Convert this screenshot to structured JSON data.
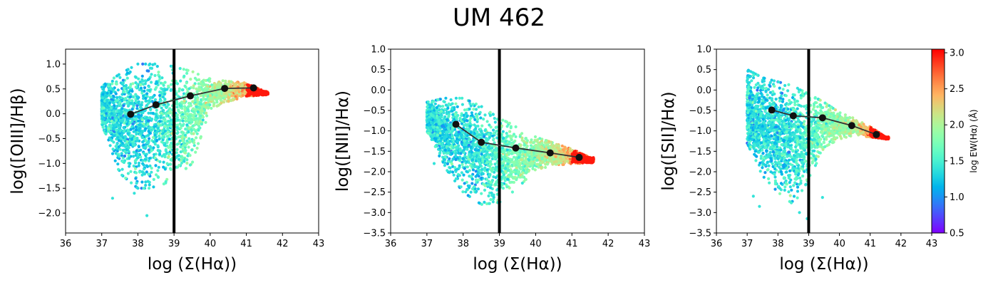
{
  "figure_title": "UM 462",
  "chart_data": [
    {
      "type": "scatter",
      "panel": "left",
      "xlabel": "log (Σ(Hα))",
      "ylabel": "log([OIII]/Hβ)",
      "xlim": [
        36,
        43
      ],
      "ylim": [
        -2.4,
        1.3
      ],
      "xticks": [
        36,
        37,
        38,
        39,
        40,
        41,
        42,
        43
      ],
      "yticks": [
        -2.0,
        -1.5,
        -1.0,
        -0.5,
        0.0,
        0.5,
        1.0
      ],
      "vline_x": 39,
      "grid": false,
      "binned_median": {
        "x": [
          37.8,
          38.5,
          39.45,
          40.4,
          41.2
        ],
        "y": [
          -0.01,
          0.18,
          0.36,
          0.51,
          0.52
        ]
      },
      "scatter_envelope": {
        "x": [
          37.0,
          37.5,
          38.0,
          38.5,
          39.0,
          39.5,
          40.0,
          40.5,
          41.0,
          41.5
        ],
        "y_low": [
          -0.2,
          -1.2,
          -1.5,
          -1.5,
          -1.3,
          -1.0,
          0.1,
          0.25,
          0.35,
          0.38
        ],
        "y_high": [
          0.55,
          0.8,
          1.0,
          1.0,
          0.95,
          0.85,
          0.7,
          0.65,
          0.62,
          0.45
        ]
      },
      "outliers": [
        [
          37.3,
          -1.7
        ],
        [
          38.25,
          -2.05
        ],
        [
          37.9,
          -1.6
        ]
      ]
    },
    {
      "type": "scatter",
      "panel": "middle",
      "xlabel": "log (Σ(Hα))",
      "ylabel": "log([NII]/Hα)",
      "xlim": [
        36,
        43
      ],
      "ylim": [
        -3.5,
        1.0
      ],
      "xticks": [
        36,
        37,
        38,
        39,
        40,
        41,
        42,
        43
      ],
      "yticks": [
        -3.5,
        -3.0,
        -2.5,
        -2.0,
        -1.5,
        -1.0,
        -0.5,
        0.0,
        0.5,
        1.0
      ],
      "vline_x": 39,
      "grid": false,
      "binned_median": {
        "x": [
          37.8,
          38.5,
          39.45,
          40.4,
          41.2
        ],
        "y": [
          -0.84,
          -1.28,
          -1.42,
          -1.54,
          -1.65
        ]
      },
      "scatter_envelope": {
        "x": [
          37.0,
          37.5,
          38.0,
          38.5,
          39.0,
          39.5,
          40.0,
          40.5,
          41.0,
          41.5
        ],
        "y_low": [
          -1.0,
          -1.9,
          -2.5,
          -2.8,
          -2.75,
          -2.4,
          -1.95,
          -1.85,
          -1.8,
          -1.78
        ],
        "y_high": [
          -0.3,
          -0.2,
          -0.2,
          -0.4,
          -0.7,
          -0.9,
          -1.15,
          -1.3,
          -1.45,
          -1.65
        ]
      },
      "outliers": [
        [
          37.0,
          -0.92
        ],
        [
          37.2,
          -1.8
        ]
      ]
    },
    {
      "type": "scatter",
      "panel": "right",
      "xlabel": "log (Σ(Hα))",
      "ylabel": "log([SII]/Hα)",
      "xlim": [
        36,
        43
      ],
      "ylim": [
        -3.5,
        1.0
      ],
      "xticks": [
        36,
        37,
        38,
        39,
        40,
        41,
        42,
        43
      ],
      "yticks": [
        -3.5,
        -3.0,
        -2.5,
        -2.0,
        -1.5,
        -1.0,
        -0.5,
        0.0,
        0.5,
        1.0
      ],
      "vline_x": 39,
      "grid": false,
      "binned_median": {
        "x": [
          37.8,
          38.5,
          39.45,
          40.4,
          41.2
        ],
        "y": [
          -0.49,
          -0.63,
          -0.68,
          -0.87,
          -1.09
        ]
      },
      "scatter_envelope": {
        "x": [
          37.0,
          37.5,
          38.0,
          38.5,
          39.0,
          39.5,
          40.0,
          40.5,
          41.0,
          41.5
        ],
        "y_low": [
          -1.3,
          -2.1,
          -2.5,
          -2.8,
          -2.2,
          -1.4,
          -1.2,
          -1.1,
          -1.15,
          -1.2
        ],
        "y_high": [
          0.5,
          0.3,
          0.2,
          0.1,
          -0.1,
          -0.3,
          -0.55,
          -0.7,
          -0.9,
          -1.15
        ]
      },
      "outliers": [
        [
          37.2,
          -2.6
        ],
        [
          37.4,
          -2.85
        ],
        [
          38.7,
          -3.0
        ],
        [
          38.95,
          -3.15
        ],
        [
          39.45,
          -2.63
        ],
        [
          37.05,
          -0.8
        ]
      ]
    }
  ],
  "colorbar": {
    "label": "log EW(Hα) (Å)",
    "range": [
      0.5,
      3.05
    ],
    "ticks": [
      0.5,
      1.0,
      1.5,
      2.0,
      2.5,
      3.0
    ],
    "colormap": "rainbow"
  },
  "colors": {
    "median_line": "#333333",
    "median_marker": "#111111",
    "vline": "#000000",
    "axes": "#000000"
  }
}
